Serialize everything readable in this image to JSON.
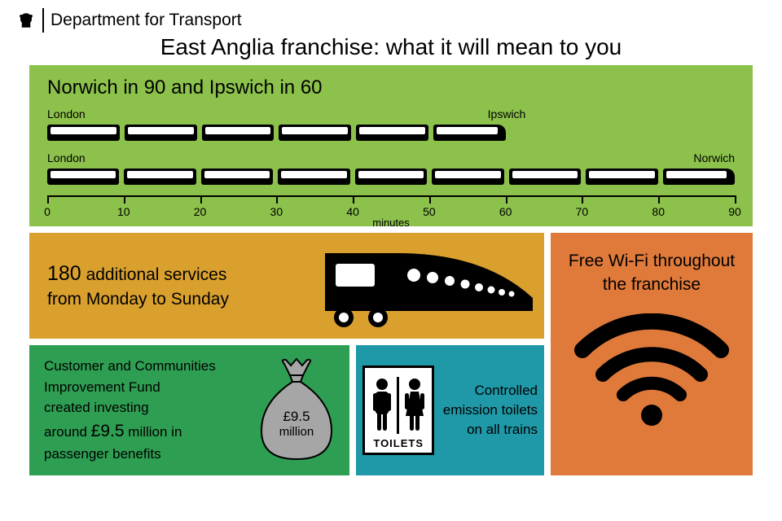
{
  "header": {
    "department": "Department for Transport"
  },
  "title": "East Anglia franchise: what it will mean to you",
  "panel_train": {
    "background_color": "#8cc14b",
    "heading": "Norwich in 90 and Ipswich in 60",
    "route1": {
      "from": "London",
      "to": "Ipswich",
      "cars": 6,
      "minutes": 60
    },
    "route2": {
      "from": "London",
      "to": "Norwich",
      "cars": 9,
      "minutes": 90
    },
    "axis": {
      "min": 0,
      "max": 90,
      "step": 10,
      "title": "minutes",
      "ticks": [
        0,
        10,
        20,
        30,
        40,
        50,
        60,
        70,
        80,
        90
      ]
    }
  },
  "panel_services": {
    "background_color": "#d9a02e",
    "count": "180",
    "text1": "additional services",
    "text2": "from Monday to Sunday"
  },
  "panel_fund": {
    "background_color": "#2e9e52",
    "line1": "Customer and Communities",
    "line2": "Improvement Fund",
    "line3": "created investing",
    "amount": "£9.5",
    "line4_pre": "around",
    "line4_post": "million in",
    "line5": "passenger benefits",
    "bag_label": "£9.5\nmillion",
    "bag_color": "#a6a6a6"
  },
  "panel_toilets": {
    "background_color": "#1f99a8",
    "sign_label": "TOILETS",
    "text": "Controlled emission toilets on all trains"
  },
  "panel_wifi": {
    "background_color": "#e07a3b",
    "text": "Free Wi-Fi throughout the franchise"
  }
}
